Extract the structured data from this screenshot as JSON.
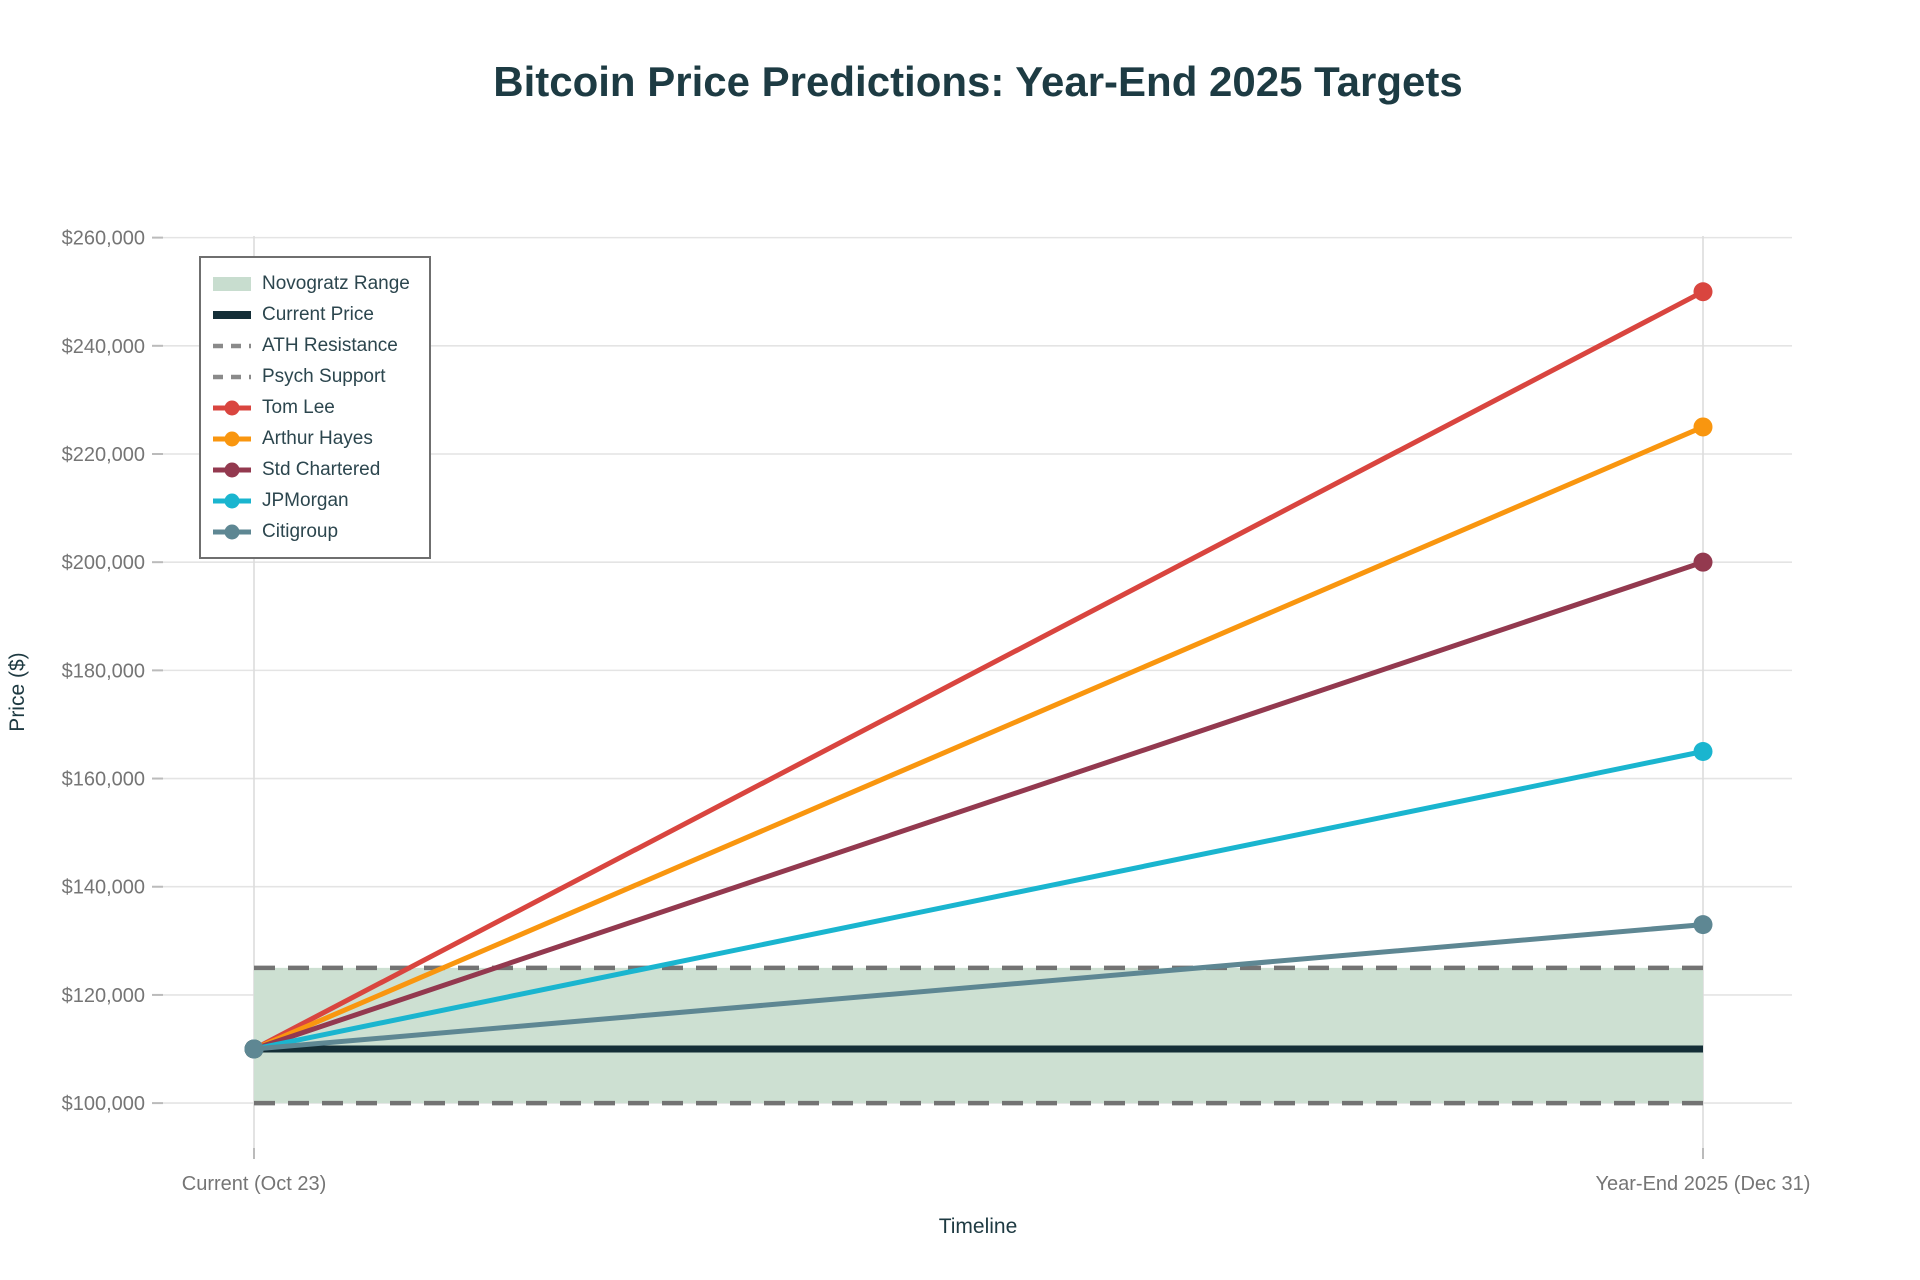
{
  "page_title": "Bitcoin Price Predictions: Year-End 2025 Targets",
  "chart_data": {
    "type": "line",
    "title": "Bitcoin Price Predictions: Year-End 2025 Targets",
    "xlabel": "Timeline",
    "ylabel": "Price ($)",
    "x_categories": [
      "Current (Oct 23)",
      "Year-End 2025 (Dec 31)"
    ],
    "y_ticks": [
      100000,
      120000,
      140000,
      160000,
      180000,
      200000,
      220000,
      240000,
      260000
    ],
    "y_tick_labels": [
      "$100,000",
      "$120,000",
      "$140,000",
      "$160,000",
      "$180,000",
      "$200,000",
      "$220,000",
      "$240,000",
      "$260,000"
    ],
    "ylim": [
      91700,
      260300
    ],
    "grid": true,
    "series": [
      {
        "name": "Tom Lee",
        "color": "#d9453f",
        "values": [
          110000,
          250000
        ]
      },
      {
        "name": "Arthur Hayes",
        "color": "#f9960f",
        "values": [
          110000,
          225000
        ]
      },
      {
        "name": "Std Chartered",
        "color": "#93394f",
        "values": [
          110000,
          200000
        ]
      },
      {
        "name": "JPMorgan",
        "color": "#1ab5cf",
        "values": [
          110000,
          165000
        ]
      },
      {
        "name": "Citigroup",
        "color": "#5e8793",
        "values": [
          110000,
          133000
        ]
      }
    ],
    "reference_lines": [
      {
        "name": "Current Price",
        "value": 110000,
        "style": "solid",
        "color": "#142e37"
      },
      {
        "name": "ATH Resistance",
        "value": 125000,
        "style": "dashed",
        "color": "#737373"
      },
      {
        "name": "Psych Support",
        "value": 100000,
        "style": "dashed",
        "color": "#737373"
      }
    ],
    "bands": [
      {
        "name": "Novogratz Range",
        "from": 100000,
        "to": 125000,
        "color": "#cde0d2"
      }
    ],
    "legend": {
      "position": "upper-left",
      "entries": [
        {
          "label": "Novogratz Range",
          "swatch": "band",
          "color": "#c8ddcf"
        },
        {
          "label": "Current Price",
          "swatch": "thick-line",
          "color": "#142e37"
        },
        {
          "label": "ATH Resistance",
          "swatch": "dashed-line",
          "color": "#8a8a8a"
        },
        {
          "label": "Psych Support",
          "swatch": "dashed-line",
          "color": "#8a8a8a"
        },
        {
          "label": "Tom Lee",
          "swatch": "line-marker",
          "color": "#d9453f"
        },
        {
          "label": "Arthur Hayes",
          "swatch": "line-marker",
          "color": "#f9960f"
        },
        {
          "label": "Std Chartered",
          "swatch": "line-marker",
          "color": "#93394f"
        },
        {
          "label": "JPMorgan",
          "swatch": "line-marker",
          "color": "#1ab5cf"
        },
        {
          "label": "Citigroup",
          "swatch": "line-marker",
          "color": "#5e8793"
        }
      ]
    },
    "colors": {
      "grid": "#e4e4e4",
      "vertical_grid": "#dcdcdc",
      "tick": "#bbbbbb",
      "title_text": "#1d3b43",
      "axis_label_text": "#1e3a42",
      "tick_label_text": "#757575"
    }
  }
}
